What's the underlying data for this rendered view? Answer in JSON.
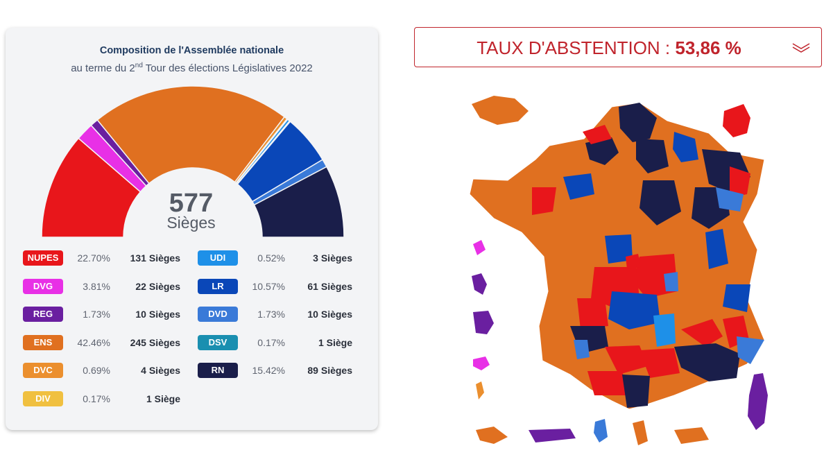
{
  "composition": {
    "title": "Composition de l'Assemblée nationale",
    "subtitle_pre": "au terme du 2",
    "subtitle_sup": "nd",
    "subtitle_post": " Tour des élections Législatives 2022",
    "total": "577",
    "total_label": "Sièges"
  },
  "parties": [
    {
      "label": "NUPES",
      "percent": "22.70%",
      "seats_text": "131 Sièges",
      "seats": 131,
      "color": "#e8161b"
    },
    {
      "label": "DVG",
      "percent": "3.81%",
      "seats_text": "22 Sièges",
      "seats": 22,
      "color": "#e830e6"
    },
    {
      "label": "REG",
      "percent": "1.73%",
      "seats_text": "10 Sièges",
      "seats": 10,
      "color": "#6a1fa0"
    },
    {
      "label": "ENS",
      "percent": "42.46%",
      "seats_text": "245 Sièges",
      "seats": 245,
      "color": "#e07020"
    },
    {
      "label": "DVC",
      "percent": "0.69%",
      "seats_text": "4 Sièges",
      "seats": 4,
      "color": "#eb8f2e"
    },
    {
      "label": "DIV",
      "percent": "0.17%",
      "seats_text": "1 Siège",
      "seats": 1,
      "color": "#f0c040"
    },
    {
      "label": "UDI",
      "percent": "0.52%",
      "seats_text": "3 Sièges",
      "seats": 3,
      "color": "#1e90e8"
    },
    {
      "label": "LR",
      "percent": "10.57%",
      "seats_text": "61 Sièges",
      "seats": 61,
      "color": "#0a47b8"
    },
    {
      "label": "DVD",
      "percent": "1.73%",
      "seats_text": "10 Sièges",
      "seats": 10,
      "color": "#3a7ad8"
    },
    {
      "label": "DSV",
      "percent": "0.17%",
      "seats_text": "1 Siège",
      "seats": 1,
      "color": "#1a8fb0"
    },
    {
      "label": "RN",
      "percent": "15.42%",
      "seats_text": "89 Sièges",
      "seats": 89,
      "color": "#1a1e4a"
    }
  ],
  "abstention": {
    "label": "TAUX D'ABSTENTION : ",
    "value": "53,86 %",
    "toggle_icon": "double-chevron-down-icon"
  },
  "map": {
    "description_icon": "france-departments-map"
  }
}
